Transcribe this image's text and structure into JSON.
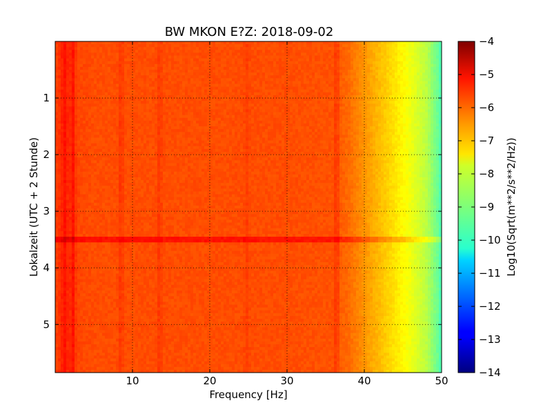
{
  "chart_data": {
    "type": "heatmap",
    "title": "BW MKON E?Z: 2018-09-02",
    "xlabel": "Frequency [Hz]",
    "ylabel": "Lokalzeit (UTC + 2 Stunde)",
    "colorbar_label": "Log10(Sqrt(m**2/s**2/Hz))",
    "colormap": "jet",
    "xlim": [
      0,
      50
    ],
    "ylim": [
      0,
      5.85
    ],
    "y_inverted": true,
    "grid": true,
    "x_ticks": [
      10,
      20,
      30,
      40,
      50
    ],
    "x_tick_labels": [
      "10",
      "20",
      "30",
      "40",
      "50"
    ],
    "y_ticks": [
      1,
      2,
      3,
      4,
      5
    ],
    "y_tick_labels": [
      "1",
      "2",
      "3",
      "4",
      "5"
    ],
    "color_range": [
      -14,
      -4
    ],
    "colorbar_ticks": [
      -4,
      -5,
      -6,
      -7,
      -8,
      -9,
      -10,
      -11,
      -12,
      -13,
      -14
    ],
    "colorbar_tick_labels": [
      "−4",
      "−5",
      "−6",
      "−7",
      "−8",
      "−9",
      "−10",
      "−11",
      "−12",
      "−13",
      "−14"
    ],
    "frequency_profile": {
      "frequency_hz": [
        0,
        1,
        2.5,
        5,
        10,
        20,
        30,
        36,
        38,
        40,
        42,
        44,
        46,
        48,
        49.5,
        50
      ],
      "log10_amplitude": [
        -5.9,
        -5.6,
        -5.9,
        -6.0,
        -6.0,
        -6.0,
        -6.0,
        -6.05,
        -6.3,
        -6.7,
        -7.1,
        -7.5,
        -7.9,
        -8.4,
        -9.2,
        -9.6
      ]
    },
    "vertical_lines_hz": [
      {
        "hz": 1.3,
        "delta": 0.25
      },
      {
        "hz": 2.3,
        "delta": 0.45
      },
      {
        "hz": 8.5,
        "delta": 0.25
      },
      {
        "hz": 13.5,
        "delta": 0.22
      },
      {
        "hz": 24.8,
        "delta": 0.15
      },
      {
        "hz": 36.4,
        "delta": 0.35
      }
    ],
    "horizontal_band": {
      "time_h": 3.5,
      "freq_range_hz": [
        0,
        50
      ],
      "delta": 0.6
    }
  }
}
